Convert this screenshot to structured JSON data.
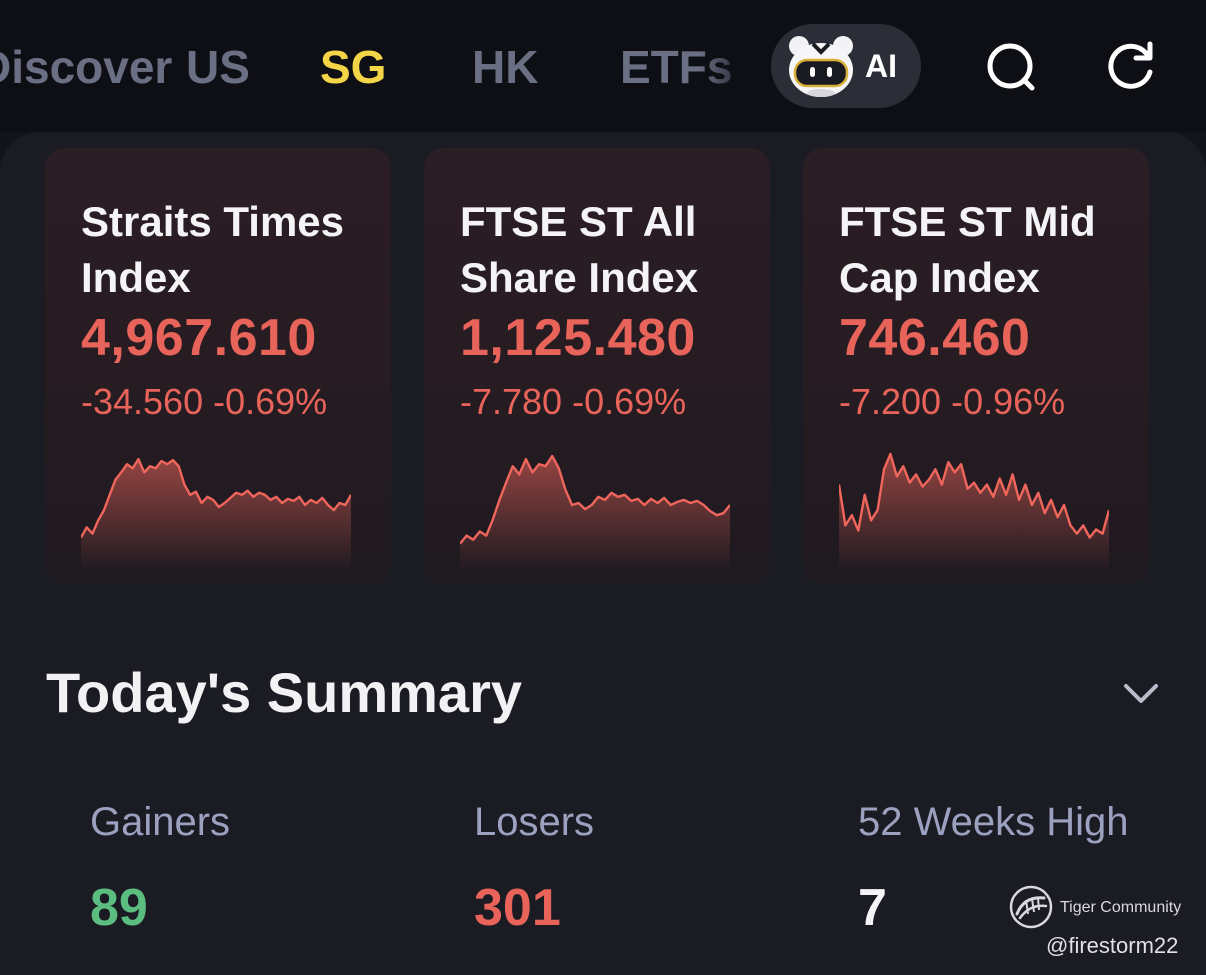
{
  "nav": {
    "tabs": [
      {
        "label": "Discover"
      },
      {
        "label": "US"
      },
      {
        "label": "SG"
      },
      {
        "label": "HK"
      },
      {
        "label": "ETFs"
      }
    ],
    "active_tab": "SG",
    "ai_label": "AI",
    "search_icon": "search-icon",
    "refresh_icon": "refresh-icon"
  },
  "indices": [
    {
      "name": "Straits Times Index",
      "value": "4,967.610",
      "change": "-34.560",
      "change_pct": "-0.69%",
      "trend": [
        0.18,
        0.28,
        0.22,
        0.35,
        0.45,
        0.6,
        0.75,
        0.82,
        0.9,
        0.86,
        0.95,
        0.82,
        0.88,
        0.86,
        0.93,
        0.9,
        0.94,
        0.88,
        0.7,
        0.6,
        0.63,
        0.52,
        0.58,
        0.55,
        0.48,
        0.52,
        0.57,
        0.62,
        0.6,
        0.64,
        0.58,
        0.62,
        0.6,
        0.55,
        0.58,
        0.52,
        0.56,
        0.54,
        0.58,
        0.5,
        0.55,
        0.52,
        0.57,
        0.5,
        0.45,
        0.52,
        0.5,
        0.6
      ],
      "line_color": "#f0665c"
    },
    {
      "name": "FTSE ST All Share Index",
      "value": "1,125.480",
      "change": "-7.780",
      "change_pct": "-0.69%",
      "trend": [
        0.12,
        0.2,
        0.16,
        0.24,
        0.2,
        0.36,
        0.55,
        0.72,
        0.88,
        0.8,
        0.95,
        0.82,
        0.9,
        0.88,
        0.98,
        0.86,
        0.65,
        0.5,
        0.52,
        0.46,
        0.5,
        0.58,
        0.55,
        0.62,
        0.58,
        0.6,
        0.54,
        0.56,
        0.5,
        0.56,
        0.52,
        0.57,
        0.5,
        0.53,
        0.55,
        0.52,
        0.54,
        0.5,
        0.44,
        0.4,
        0.42,
        0.5
      ],
      "line_color": "#f0665c"
    },
    {
      "name": "FTSE ST Mid Cap Index",
      "value": "746.460",
      "change": "-7.200",
      "change_pct": "-0.96%",
      "trend": [
        0.7,
        0.3,
        0.4,
        0.25,
        0.6,
        0.35,
        0.45,
        0.85,
        1.0,
        0.78,
        0.88,
        0.72,
        0.8,
        0.68,
        0.75,
        0.85,
        0.7,
        0.92,
        0.82,
        0.9,
        0.66,
        0.72,
        0.62,
        0.7,
        0.58,
        0.76,
        0.6,
        0.8,
        0.55,
        0.7,
        0.5,
        0.62,
        0.42,
        0.55,
        0.38,
        0.5,
        0.3,
        0.22,
        0.3,
        0.18,
        0.26,
        0.22,
        0.45
      ],
      "line_color": "#f0665c"
    }
  ],
  "summary": {
    "title": "Today's Summary",
    "chevron_icon": "chevron-down-icon",
    "stats": [
      {
        "label": "Gainers",
        "value": "89",
        "color": "#5cbd81"
      },
      {
        "label": "Losers",
        "value": "301",
        "color": "#e8645b"
      },
      {
        "label": "52 Weeks High",
        "value": "7",
        "color": "#f4f4f6"
      }
    ]
  },
  "watermark": {
    "brand": "Tiger Community",
    "handle": "@firestorm22"
  }
}
